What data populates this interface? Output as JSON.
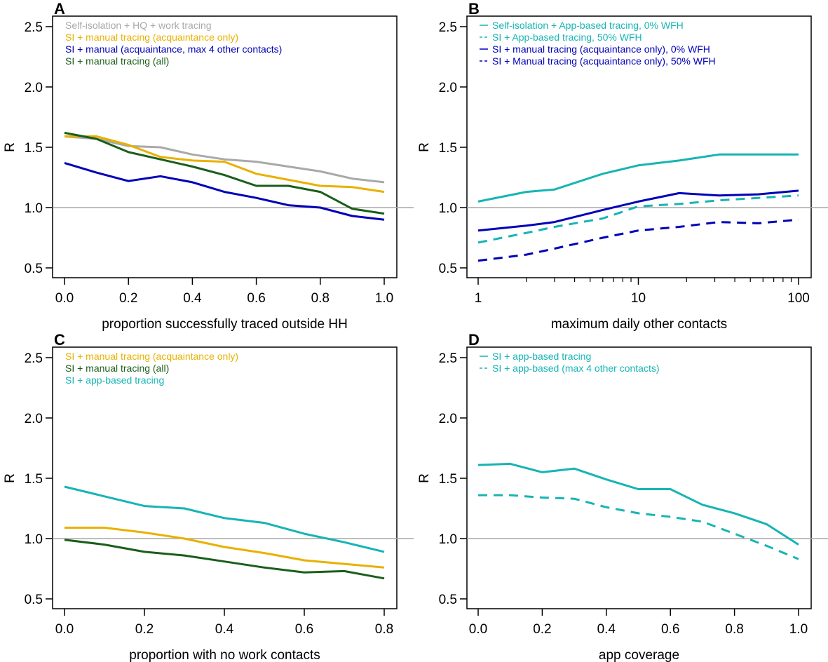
{
  "colors": {
    "grey": "#a9a9a9",
    "gold": "#e8b100",
    "blue": "#0000b8",
    "green": "#1a5e1a",
    "teal": "#17b4b4",
    "refline": "#a8a8a8"
  },
  "chart_data": [
    {
      "id": "A",
      "panel_label": "A",
      "type": "line",
      "xscale": "linear",
      "xlabel": "proportion successfully traced outside HH",
      "ylabel": "R",
      "xlim": [
        0,
        1
      ],
      "ylim": [
        0.5,
        2.5
      ],
      "xticks": [
        0,
        0.2,
        0.4,
        0.6,
        0.8,
        1.0
      ],
      "xtick_labels": [
        "0.0",
        "0.2",
        "0.4",
        "0.6",
        "0.8",
        "1.0"
      ],
      "yticks": [
        0.5,
        1.0,
        1.5,
        2.0,
        2.5
      ],
      "ytick_labels": [
        "0.5",
        "1.0",
        "1.5",
        "2.0",
        "2.5"
      ],
      "refline": 1.0,
      "legend_position": "top-left",
      "series": [
        {
          "name": "Self-isolation + HQ + work tracing",
          "color": "grey",
          "dash": false,
          "x": [
            0,
            0.1,
            0.2,
            0.3,
            0.4,
            0.5,
            0.6,
            0.7,
            0.8,
            0.9,
            1.0
          ],
          "y": [
            1.59,
            1.57,
            1.51,
            1.5,
            1.44,
            1.4,
            1.38,
            1.34,
            1.3,
            1.24,
            1.21
          ]
        },
        {
          "name": "SI + manual tracing (acquaintance only)",
          "color": "gold",
          "dash": false,
          "x": [
            0,
            0.1,
            0.2,
            0.3,
            0.4,
            0.5,
            0.6,
            0.7,
            0.8,
            0.9,
            1.0
          ],
          "y": [
            1.59,
            1.59,
            1.52,
            1.42,
            1.39,
            1.38,
            1.28,
            1.23,
            1.18,
            1.17,
            1.13
          ]
        },
        {
          "name": "SI + manual (acquaintance, max 4 other contacts)",
          "color": "blue",
          "dash": false,
          "x": [
            0,
            0.1,
            0.2,
            0.3,
            0.4,
            0.5,
            0.6,
            0.7,
            0.8,
            0.9,
            1.0
          ],
          "y": [
            1.37,
            1.29,
            1.22,
            1.26,
            1.21,
            1.13,
            1.08,
            1.02,
            1.0,
            0.93,
            0.9
          ]
        },
        {
          "name": "SI + manual tracing (all)",
          "color": "green",
          "dash": false,
          "x": [
            0,
            0.1,
            0.2,
            0.3,
            0.4,
            0.5,
            0.6,
            0.7,
            0.8,
            0.9,
            1.0
          ],
          "y": [
            1.62,
            1.57,
            1.46,
            1.4,
            1.34,
            1.27,
            1.18,
            1.18,
            1.13,
            0.99,
            0.95
          ]
        }
      ]
    },
    {
      "id": "B",
      "panel_label": "B",
      "type": "line",
      "xscale": "log",
      "xlabel": "maximum daily other contacts",
      "ylabel": "R",
      "xlim": [
        1,
        100
      ],
      "ylim": [
        0.5,
        2.5
      ],
      "xticks": [
        1,
        10,
        100
      ],
      "xtick_labels": [
        "1",
        "10",
        "100"
      ],
      "yticks": [
        0.5,
        1.0,
        1.5,
        2.0,
        2.5
      ],
      "ytick_labels": [
        "0.5",
        "1.0",
        "1.5",
        "2.0",
        "2.5"
      ],
      "refline": 1.0,
      "legend_position": "top-left",
      "series": [
        {
          "name": "Self-isolation + App-based tracing, 0% WFH",
          "color": "teal",
          "dash": false,
          "x": [
            1,
            2,
            3,
            6,
            10,
            18,
            32,
            56,
            100
          ],
          "y": [
            1.05,
            1.13,
            1.15,
            1.28,
            1.35,
            1.39,
            1.44,
            1.44,
            1.44
          ]
        },
        {
          "name": "SI + App-based tracing, 50% WFH",
          "color": "teal",
          "dash": true,
          "x": [
            1,
            2,
            3,
            6,
            10,
            18,
            32,
            56,
            100
          ],
          "y": [
            0.71,
            0.79,
            0.84,
            0.91,
            1.01,
            1.03,
            1.06,
            1.08,
            1.1
          ]
        },
        {
          "name": "SI + manual tracing (acquaintance only), 0% WFH",
          "color": "blue",
          "dash": false,
          "x": [
            1,
            2,
            3,
            6,
            10,
            18,
            32,
            56,
            100
          ],
          "y": [
            0.81,
            0.85,
            0.88,
            0.98,
            1.05,
            1.12,
            1.1,
            1.11,
            1.14
          ]
        },
        {
          "name": "SI + Manual tracing (acquaintance only), 50% WFH",
          "color": "blue",
          "dash": true,
          "x": [
            1,
            2,
            3,
            6,
            10,
            18,
            32,
            56,
            100
          ],
          "y": [
            0.56,
            0.61,
            0.66,
            0.75,
            0.81,
            0.84,
            0.88,
            0.87,
            0.9
          ]
        }
      ]
    },
    {
      "id": "C",
      "panel_label": "C",
      "type": "line",
      "xscale": "linear",
      "xlabel": "proportion with no work contacts",
      "ylabel": "R",
      "xlim": [
        0,
        0.8
      ],
      "ylim": [
        0.5,
        2.5
      ],
      "xticks": [
        0,
        0.2,
        0.4,
        0.6,
        0.8
      ],
      "xtick_labels": [
        "0.0",
        "0.2",
        "0.4",
        "0.6",
        "0.8"
      ],
      "yticks": [
        0.5,
        1.0,
        1.5,
        2.0,
        2.5
      ],
      "ytick_labels": [
        "0.5",
        "1.0",
        "1.5",
        "2.0",
        "2.5"
      ],
      "refline": 1.0,
      "legend_position": "top-left",
      "series": [
        {
          "name": "SI + manual tracing (acquaintance only)",
          "color": "gold",
          "dash": false,
          "x": [
            0,
            0.1,
            0.2,
            0.3,
            0.4,
            0.5,
            0.6,
            0.7,
            0.8
          ],
          "y": [
            1.09,
            1.09,
            1.05,
            1.0,
            0.93,
            0.88,
            0.82,
            0.79,
            0.76
          ]
        },
        {
          "name": "SI + manual tracing (all)",
          "color": "green",
          "dash": false,
          "x": [
            0,
            0.1,
            0.2,
            0.3,
            0.4,
            0.5,
            0.6,
            0.7,
            0.8
          ],
          "y": [
            0.99,
            0.95,
            0.89,
            0.86,
            0.81,
            0.76,
            0.72,
            0.73,
            0.67
          ]
        },
        {
          "name": "SI + app-based tracing",
          "color": "teal",
          "dash": false,
          "x": [
            0,
            0.1,
            0.2,
            0.3,
            0.4,
            0.5,
            0.6,
            0.7,
            0.8
          ],
          "y": [
            1.43,
            1.35,
            1.27,
            1.25,
            1.17,
            1.13,
            1.04,
            0.97,
            0.89
          ]
        }
      ]
    },
    {
      "id": "D",
      "panel_label": "D",
      "type": "line",
      "xscale": "linear",
      "xlabel": "app coverage",
      "ylabel": "R",
      "xlim": [
        0,
        1
      ],
      "ylim": [
        0.5,
        2.5
      ],
      "xticks": [
        0,
        0.2,
        0.4,
        0.6,
        0.8,
        1.0
      ],
      "xtick_labels": [
        "0.0",
        "0.2",
        "0.4",
        "0.6",
        "0.8",
        "1.0"
      ],
      "yticks": [
        0.5,
        1.0,
        1.5,
        2.0,
        2.5
      ],
      "ytick_labels": [
        "0.5",
        "1.0",
        "1.5",
        "2.0",
        "2.5"
      ],
      "refline": 1.0,
      "legend_position": "top-left",
      "series": [
        {
          "name": "SI + app-based tracing",
          "color": "teal",
          "dash": false,
          "x": [
            0,
            0.1,
            0.2,
            0.3,
            0.4,
            0.5,
            0.6,
            0.7,
            0.8,
            0.9,
            1.0
          ],
          "y": [
            1.61,
            1.62,
            1.55,
            1.58,
            1.49,
            1.41,
            1.41,
            1.28,
            1.21,
            1.12,
            0.95
          ]
        },
        {
          "name": "SI + app-based (max 4 other contacts)",
          "color": "teal",
          "dash": true,
          "x": [
            0,
            0.1,
            0.2,
            0.3,
            0.4,
            0.5,
            0.6,
            0.7,
            0.8,
            0.9,
            1.0
          ],
          "y": [
            1.36,
            1.36,
            1.34,
            1.33,
            1.26,
            1.21,
            1.18,
            1.14,
            1.04,
            0.94,
            0.83
          ]
        }
      ]
    }
  ]
}
